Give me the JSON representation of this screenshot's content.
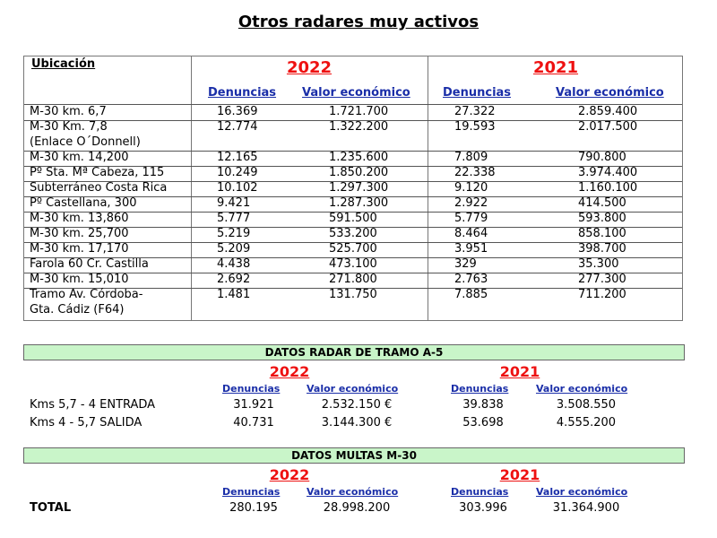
{
  "title": "Otros radares muy activos",
  "main_table": {
    "location_header": "Ubicación",
    "years": [
      "2022",
      "2021"
    ],
    "col_headers": [
      "Denuncias",
      "Valor económico",
      "Denuncias",
      "Valor económico"
    ],
    "rows": [
      {
        "loc": [
          "M-30 km. 6,7"
        ],
        "d2022": "16.369",
        "v2022": "1.721.700",
        "d2021": "27.322",
        "v2021": "2.859.400"
      },
      {
        "loc": [
          "M-30 Km. 7,8",
          "(Enlace O´Donnell)"
        ],
        "d2022": "12.774",
        "v2022": "1.322.200",
        "d2021": "19.593",
        "v2021": "2.017.500"
      },
      {
        "loc": [
          "M-30 km. 14,200"
        ],
        "d2022": "12.165",
        "v2022": "1.235.600",
        "d2021": "7.809",
        "v2021": "790.800"
      },
      {
        "loc": [
          "Pº Sta. Mª Cabeza, 115"
        ],
        "d2022": "10.249",
        "v2022": "1.850.200",
        "d2021": "22.338",
        "v2021": "3.974.400"
      },
      {
        "loc": [
          "Subterráneo Costa Rica"
        ],
        "d2022": "10.102",
        "v2022": "1.297.300",
        "d2021": "9.120",
        "v2021": "1.160.100"
      },
      {
        "loc": [
          "Pº Castellana, 300"
        ],
        "d2022": "9.421",
        "v2022": "1.287.300",
        "d2021": "2.922",
        "v2021": "414.500"
      },
      {
        "loc": [
          "M-30 km. 13,860"
        ],
        "d2022": "5.777",
        "v2022": "591.500",
        "d2021": "5.779",
        "v2021": "593.800"
      },
      {
        "loc": [
          "M-30 km. 25,700"
        ],
        "d2022": "5.219",
        "v2022": "533.200",
        "d2021": "8.464",
        "v2021": "858.100"
      },
      {
        "loc": [
          "M-30 km. 17,170"
        ],
        "d2022": "5.209",
        "v2022": "525.700",
        "d2021": "3.951",
        "v2021": "398.700"
      },
      {
        "loc": [
          "Farola 60 Cr. Castilla"
        ],
        "d2022": "4.438",
        "v2022": "473.100",
        "d2021": "329",
        "v2021": "35.300"
      },
      {
        "loc": [
          "M-30 km. 15,010"
        ],
        "d2022": "2.692",
        "v2022": "271.800",
        "d2021": "2.763",
        "v2021": "277.300"
      },
      {
        "loc": [
          "Tramo Av. Córdoba-",
          "Gta. Cádiz (F64)"
        ],
        "d2022": "1.481",
        "v2022": "131.750",
        "d2021": "7.885",
        "v2021": "711.200"
      }
    ]
  },
  "tramo_a5": {
    "header": "DATOS RADAR DE TRAMO A-5",
    "years": [
      "2022",
      "2021"
    ],
    "col_headers": [
      "Denuncias",
      "Valor económico",
      "Denuncias",
      "Valor económico"
    ],
    "rows": [
      {
        "label": "Kms 5,7 - 4 ENTRADA",
        "d2022": "31.921",
        "v2022": "2.532.150 €",
        "d2021": "39.838",
        "v2021": "3.508.550"
      },
      {
        "label": "Kms 4 - 5,7 SALIDA",
        "d2022": "40.731",
        "v2022": "3.144.300 €",
        "d2021": "53.698",
        "v2021": "4.555.200"
      }
    ]
  },
  "multas_m30": {
    "header": "DATOS MULTAS M-30",
    "years": [
      "2022",
      "2021"
    ],
    "col_headers": [
      "Denuncias",
      "Valor económico",
      "Denuncias",
      "Valor económico"
    ],
    "rows": [
      {
        "label": "TOTAL",
        "d2022": "280.195",
        "v2022": "28.998.200",
        "d2021": "303.996",
        "v2021": "31.364.900"
      }
    ]
  }
}
